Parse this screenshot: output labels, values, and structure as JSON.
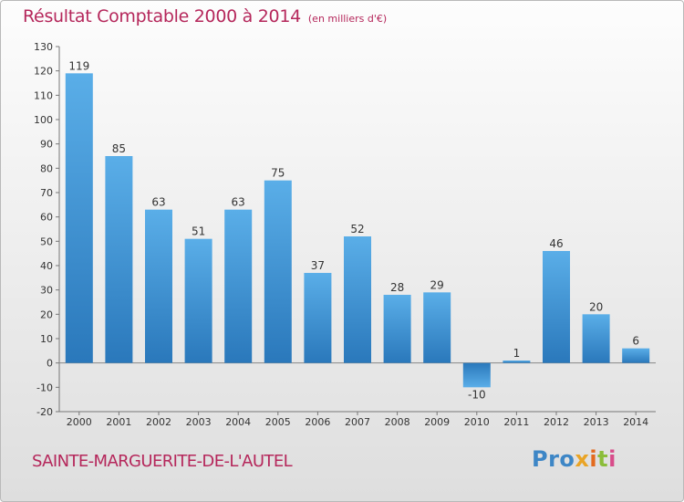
{
  "header": {
    "title": "Résultat Comptable 2000 à 2014",
    "subtitle": "(en milliers d'€)"
  },
  "footer": {
    "place": "SAINTE-MARGUERITE-DE-L'AUTEL",
    "logo_parts": [
      "Pro",
      "x",
      "i",
      "t",
      "i"
    ]
  },
  "colors": {
    "title": "#b5275b",
    "bar_top": "#5aaee8",
    "bar_bottom": "#2a78bb"
  },
  "chart_data": {
    "type": "bar",
    "title": "Résultat Comptable 2000 à 2014",
    "subtitle": "(en milliers d'€)",
    "categories": [
      "2000",
      "2001",
      "2002",
      "2003",
      "2004",
      "2005",
      "2006",
      "2007",
      "2008",
      "2009",
      "2010",
      "2011",
      "2012",
      "2013",
      "2014"
    ],
    "values": [
      119,
      85,
      63,
      51,
      63,
      75,
      37,
      52,
      28,
      29,
      -10,
      1,
      46,
      20,
      6
    ],
    "data_labels": [
      "119",
      "85",
      "63",
      "51",
      "63",
      "75",
      "37",
      "52",
      "28",
      "29",
      "-10",
      "1",
      "46",
      "20",
      "6"
    ],
    "yticks": [
      "-20",
      "-10",
      "0",
      "10",
      "20",
      "30",
      "40",
      "50",
      "60",
      "70",
      "80",
      "90",
      "100",
      "110",
      "120",
      "130"
    ],
    "ylim": [
      -20,
      130
    ],
    "grid": false,
    "legend": "none"
  }
}
